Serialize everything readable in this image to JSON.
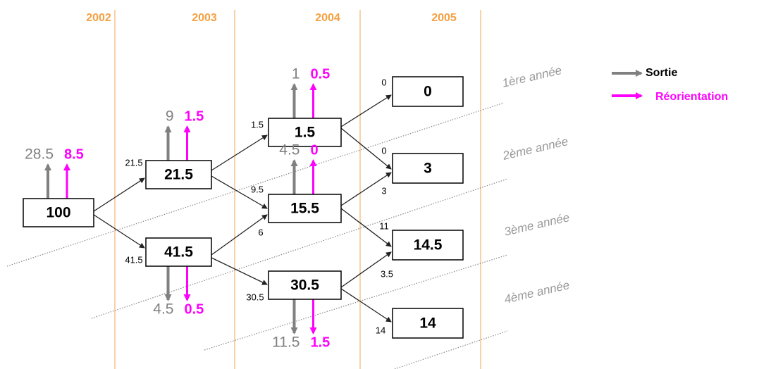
{
  "years": [
    "2002",
    "2003",
    "2004",
    "2005"
  ],
  "nodes": [
    {
      "label": "100",
      "sortie": "28.5",
      "reorientation": "8.5"
    },
    {
      "label": "21.5",
      "sortie": "9",
      "reorientation": "1.5"
    },
    {
      "label": "41.5",
      "sortie": "4.5",
      "reorientation": "0.5"
    },
    {
      "label": "1.5",
      "sortie": "1",
      "reorientation": "0.5"
    },
    {
      "label": "15.5",
      "sortie": "4.5",
      "reorientation": "0"
    },
    {
      "label": "30.5",
      "sortie": "11.5",
      "reorientation": "1.5"
    },
    {
      "label": "0"
    },
    {
      "label": "3"
    },
    {
      "label": "14.5"
    },
    {
      "label": "14"
    }
  ],
  "edges": [
    {
      "label": "21.5"
    },
    {
      "label": "41.5"
    },
    {
      "label": "1.5"
    },
    {
      "label": "9.5"
    },
    {
      "label": "6"
    },
    {
      "label": "30.5"
    },
    {
      "label": "0"
    },
    {
      "label": "0"
    },
    {
      "label": "3"
    },
    {
      "label": "11"
    },
    {
      "label": "3.5"
    },
    {
      "label": "14"
    }
  ],
  "levels": [
    "1ère année",
    "2ème année",
    "3ème année",
    "4ème année"
  ],
  "legend": [
    "Sortie",
    "Réorientation"
  ]
}
